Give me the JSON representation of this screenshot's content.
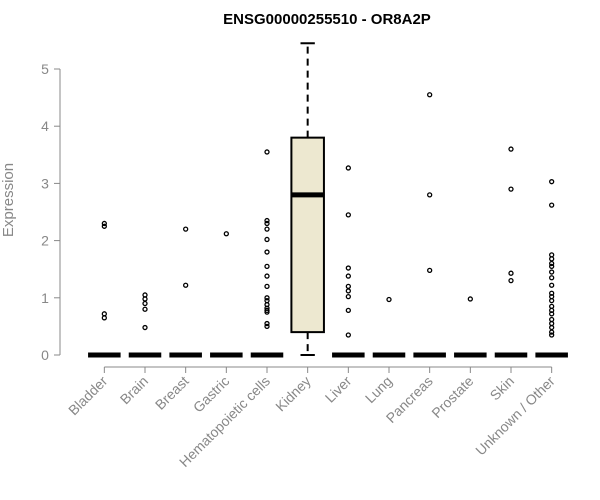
{
  "chart_data": {
    "type": "box",
    "title": "ENSG00000255510 - OR8A2P",
    "ylabel": "Expression",
    "xlabel": "",
    "ylim": [
      0,
      5.5
    ],
    "yticks": [
      0,
      1,
      2,
      3,
      4,
      5
    ],
    "grid": false,
    "box_fill": "#ede8d0",
    "point_color": "#000000",
    "axis_color": "#888888",
    "categories": [
      "Bladder",
      "Brain",
      "Breast",
      "Gastric",
      "Hematopoietic cells",
      "Kidney",
      "Liver",
      "Lung",
      "Pancreas",
      "Prostate",
      "Skin",
      "Unknown / Other"
    ],
    "groups": [
      {
        "name": "Bladder",
        "median": 0,
        "points": [
          2.3,
          2.25,
          0.72,
          0.65
        ]
      },
      {
        "name": "Brain",
        "median": 0,
        "points": [
          1.05,
          0.98,
          0.9,
          0.8,
          0.48
        ]
      },
      {
        "name": "Breast",
        "median": 0,
        "points": [
          2.2,
          1.22
        ]
      },
      {
        "name": "Gastric",
        "median": 0,
        "points": [
          2.12
        ]
      },
      {
        "name": "Hematopoietic cells",
        "median": 0,
        "points": [
          3.55,
          2.35,
          2.3,
          2.2,
          2.02,
          1.8,
          1.55,
          1.38,
          1.2,
          1.0,
          0.95,
          0.88,
          0.82,
          0.78,
          0.75,
          0.55,
          0.5
        ]
      },
      {
        "name": "Kidney",
        "box": {
          "whisker_low": 0,
          "q1": 0.4,
          "median": 2.8,
          "q3": 3.8,
          "whisker_high": 5.45
        },
        "points": []
      },
      {
        "name": "Liver",
        "median": 0,
        "points": [
          3.27,
          2.45,
          1.52,
          1.38,
          1.2,
          1.12,
          1.02,
          0.78,
          0.35
        ]
      },
      {
        "name": "Lung",
        "median": 0,
        "points": [
          0.97
        ]
      },
      {
        "name": "Pancreas",
        "median": 0,
        "points": [
          4.55,
          2.8,
          1.48
        ]
      },
      {
        "name": "Prostate",
        "median": 0,
        "points": [
          0.98
        ]
      },
      {
        "name": "Skin",
        "median": 0,
        "points": [
          3.6,
          2.9,
          1.43,
          1.3
        ]
      },
      {
        "name": "Unknown / Other",
        "median": 0,
        "points": [
          3.03,
          2.62,
          1.75,
          1.68,
          1.6,
          1.55,
          1.45,
          1.35,
          1.22,
          1.08,
          1.02,
          0.95,
          0.85,
          0.78,
          0.72,
          0.62,
          0.55,
          0.48,
          0.4,
          0.35
        ]
      }
    ]
  }
}
